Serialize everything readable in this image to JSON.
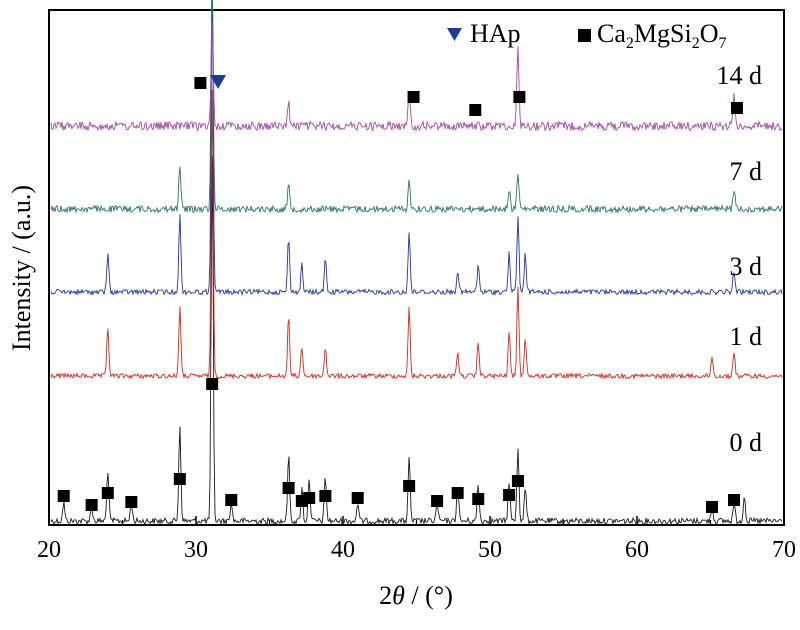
{
  "chart_data": {
    "type": "line",
    "xlabel_prefix": "2",
    "xlabel_var": "θ",
    "xlabel_suffix": " / (°)",
    "ylabel": "Intensity / (a.u.)",
    "xlim": [
      20,
      70
    ],
    "xticks": [
      20,
      30,
      40,
      50,
      60,
      70
    ],
    "y_ticks_shown": false,
    "legend": {
      "placement": "top-right",
      "items": [
        {
          "marker": "triangle-down",
          "color": "#1f3a93",
          "label": "HAp"
        },
        {
          "marker": "square",
          "color": "#000000",
          "label_main": "Ca",
          "sub1": "2",
          "label_mid": "MgSi",
          "sub2": "2",
          "label_o": "O",
          "sub3": "7"
        }
      ]
    },
    "series": [
      {
        "name": "0 d",
        "color": "#1a1a1a",
        "peaks": [
          [
            21.0,
            0.05
          ],
          [
            22.9,
            0.04
          ],
          [
            24.0,
            0.14
          ],
          [
            25.6,
            0.05
          ],
          [
            28.9,
            0.26
          ],
          [
            31.1,
            1.0
          ],
          [
            32.4,
            0.05
          ],
          [
            36.3,
            0.18
          ],
          [
            37.2,
            0.09
          ],
          [
            37.7,
            0.12
          ],
          [
            38.8,
            0.12
          ],
          [
            41.0,
            0.05
          ],
          [
            44.5,
            0.17
          ],
          [
            46.4,
            0.05
          ],
          [
            47.8,
            0.1
          ],
          [
            49.2,
            0.1
          ],
          [
            51.3,
            0.11
          ],
          [
            51.9,
            0.2
          ],
          [
            52.4,
            0.09
          ],
          [
            65.1,
            0.04
          ],
          [
            66.6,
            0.05
          ],
          [
            67.3,
            0.07
          ]
        ]
      },
      {
        "name": "1 d",
        "color": "#d62a1e",
        "peaks": [
          [
            24.0,
            0.1
          ],
          [
            28.9,
            0.14
          ],
          [
            31.1,
            0.58
          ],
          [
            36.3,
            0.12
          ],
          [
            37.2,
            0.06
          ],
          [
            38.8,
            0.06
          ],
          [
            44.5,
            0.14
          ],
          [
            47.8,
            0.05
          ],
          [
            49.2,
            0.07
          ],
          [
            51.3,
            0.09
          ],
          [
            51.9,
            0.18
          ],
          [
            52.4,
            0.08
          ],
          [
            65.1,
            0.04
          ],
          [
            66.6,
            0.05
          ]
        ]
      },
      {
        "name": "3 d",
        "color": "#22379b",
        "peaks": [
          [
            24.0,
            0.07
          ],
          [
            28.9,
            0.14
          ],
          [
            31.1,
            0.56
          ],
          [
            36.3,
            0.1
          ],
          [
            37.2,
            0.05
          ],
          [
            38.8,
            0.06
          ],
          [
            44.5,
            0.11
          ],
          [
            47.8,
            0.04
          ],
          [
            49.2,
            0.05
          ],
          [
            51.3,
            0.07
          ],
          [
            51.9,
            0.14
          ],
          [
            52.4,
            0.07
          ],
          [
            66.6,
            0.04
          ]
        ]
      },
      {
        "name": "7 d",
        "color": "#2e7272",
        "peaks": [
          [
            28.9,
            0.11
          ],
          [
            31.1,
            0.62
          ],
          [
            36.3,
            0.06
          ],
          [
            44.5,
            0.07
          ],
          [
            51.3,
            0.05
          ],
          [
            51.9,
            0.09
          ],
          [
            66.6,
            0.05
          ]
        ]
      },
      {
        "name": "14 d",
        "color": "#a24ba7",
        "peaks": [
          [
            31.1,
            0.14
          ],
          [
            36.3,
            0.03
          ],
          [
            44.5,
            0.04
          ],
          [
            51.9,
            0.1
          ],
          [
            66.6,
            0.04
          ]
        ]
      }
    ],
    "markers": {
      "ca2mgsi2o7_0d": [
        21.0,
        22.9,
        24.0,
        25.6,
        28.9,
        31.1,
        32.4,
        36.3,
        37.2,
        37.7,
        38.8,
        41.0,
        44.5,
        46.4,
        47.8,
        49.2,
        51.3,
        51.9,
        65.1,
        66.6
      ],
      "ca2mgsi2o7_14d": [
        30.3,
        44.8,
        49.0,
        52.0,
        66.8
      ],
      "hap_14d": [
        31.5
      ]
    }
  }
}
